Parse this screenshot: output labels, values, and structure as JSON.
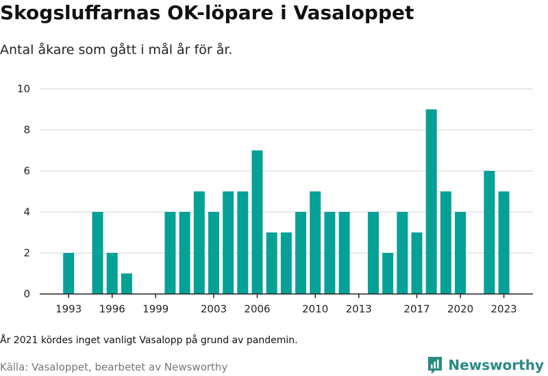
{
  "title": "Skogsluffarnas OK-löpare i Vasaloppet",
  "subtitle": "Antal åkare som gått i mål år för år.",
  "note": "År 2021 kördes inget vanligt Vasalopp på grund av pandemin.",
  "source": "Källa: Vasaloppet, bearbetet av Newsworthy",
  "brand": {
    "name": "Newsworthy",
    "icon": "bar-chart-icon",
    "color": "#2a8a82"
  },
  "colors": {
    "bar": "#05a197",
    "grid": "#d9d9d9",
    "axis": "#222222"
  },
  "chart_data": {
    "type": "bar",
    "categories": [
      "1992",
      "1993",
      "1994",
      "1995",
      "1996",
      "1997",
      "1998",
      "1999",
      "2000",
      "2001",
      "2002",
      "2003",
      "2004",
      "2005",
      "2006",
      "2007",
      "2008",
      "2009",
      "2010",
      "2011",
      "2012",
      "2013",
      "2014",
      "2015",
      "2016",
      "2017",
      "2018",
      "2019",
      "2020",
      "2021",
      "2022",
      "2023"
    ],
    "values": [
      0,
      2,
      0,
      4,
      2,
      1,
      0,
      0,
      4,
      4,
      5,
      4,
      5,
      5,
      7,
      3,
      3,
      4,
      5,
      4,
      4,
      0,
      4,
      2,
      4,
      3,
      9,
      5,
      4,
      0,
      6,
      5
    ],
    "x_tick_labels": [
      "1993",
      "1996",
      "1999",
      "2003",
      "2006",
      "2010",
      "2013",
      "2017",
      "2020",
      "2023"
    ],
    "y_ticks": [
      0,
      2,
      4,
      6,
      8,
      10
    ],
    "ylim": [
      0,
      10
    ],
    "grid": true,
    "legend": "none"
  }
}
